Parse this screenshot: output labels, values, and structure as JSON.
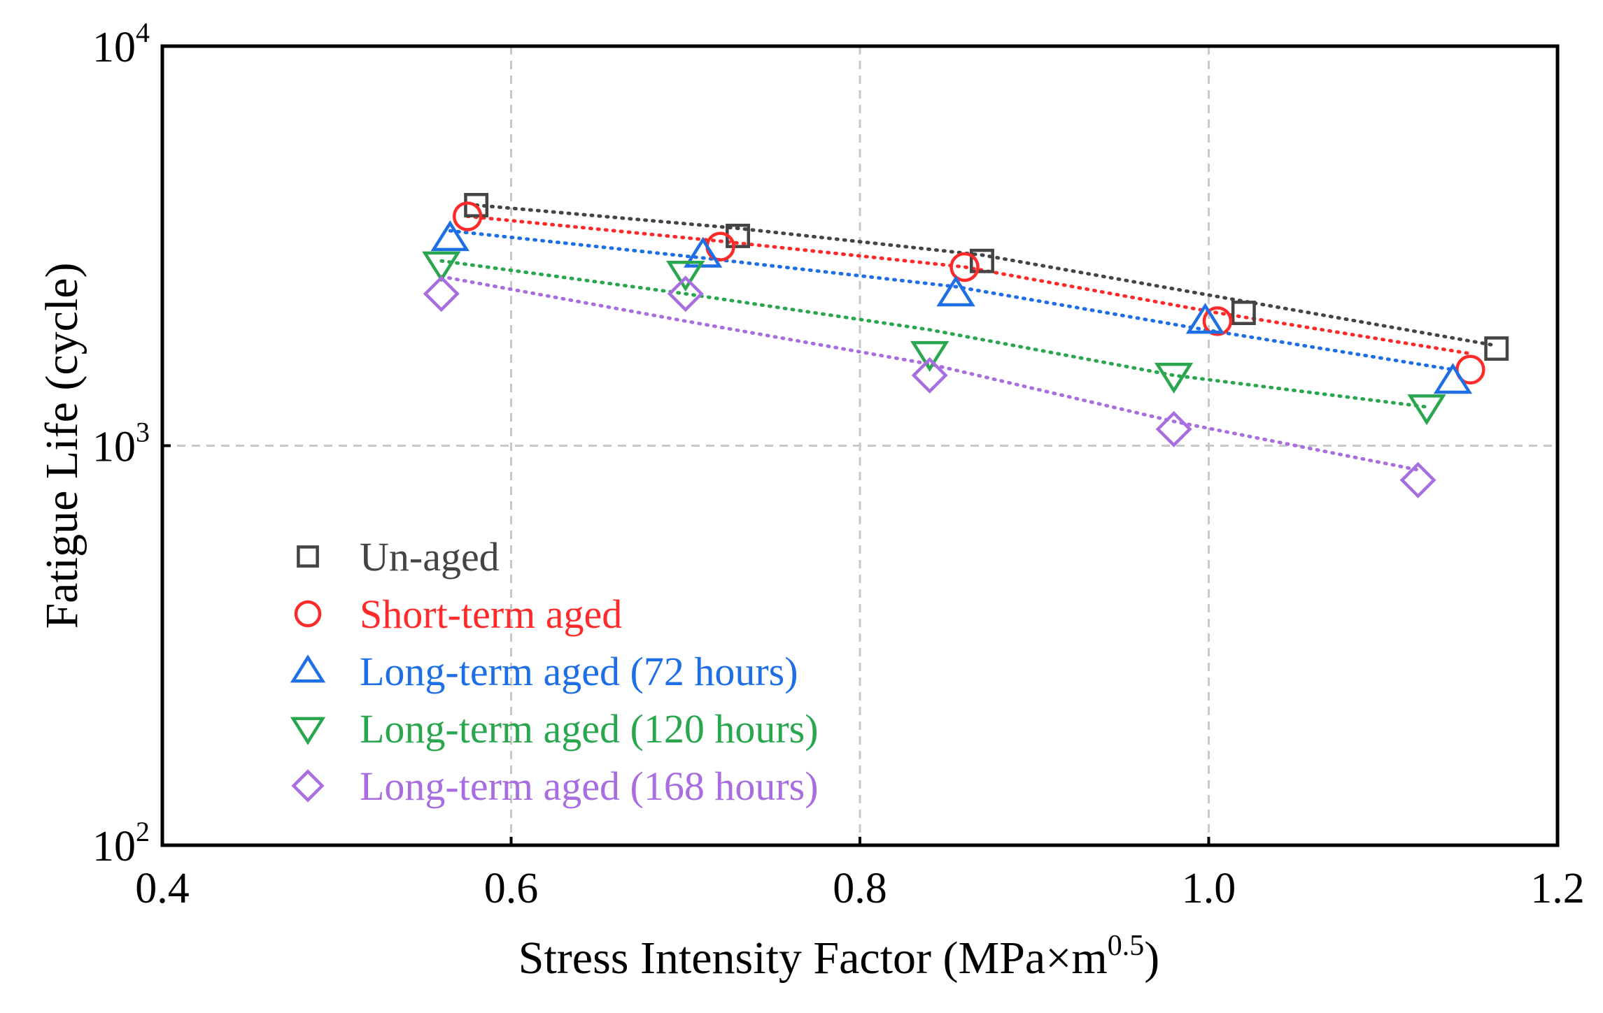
{
  "chart_data": {
    "type": "scatter",
    "title": "",
    "xlabel": "Stress Intensity Factor (MPa×m",
    "xlabel_sup": "0.5",
    "xlabel_end": ")",
    "ylabel": "Fatigue Life (cycle)",
    "xlim": [
      0.4,
      1.2
    ],
    "ylim": [
      100,
      10000
    ],
    "yscale": "log",
    "grid": true,
    "legend_position": "lower-left",
    "x_ticks": [
      {
        "value": 0.4,
        "label": "0.4"
      },
      {
        "value": 0.6,
        "label": "0.6"
      },
      {
        "value": 0.8,
        "label": "0.8"
      },
      {
        "value": 1.0,
        "label": "1.0"
      },
      {
        "value": 1.2,
        "label": "1.2"
      }
    ],
    "y_ticks": [
      {
        "value": 100,
        "base": "10",
        "exp": "2"
      },
      {
        "value": 1000,
        "base": "10",
        "exp": "3"
      },
      {
        "value": 10000,
        "base": "10",
        "exp": "4"
      }
    ],
    "series": [
      {
        "name": "Un-aged",
        "marker": "square",
        "color": "#444444",
        "x": [
          0.58,
          0.73,
          0.87,
          1.02,
          1.165
        ],
        "y": [
          4000,
          3350,
          2900,
          2150,
          1750
        ],
        "fit": [
          [
            0.58,
            4000
          ],
          [
            0.73,
            3500
          ],
          [
            0.87,
            3000
          ],
          [
            1.02,
            2300
          ],
          [
            1.165,
            1780
          ]
        ]
      },
      {
        "name": "Short-term aged",
        "marker": "circle",
        "color": "#ff2a2a",
        "x": [
          0.575,
          0.72,
          0.86,
          1.005,
          1.15
        ],
        "y": [
          3750,
          3150,
          2800,
          2050,
          1550
        ],
        "fit": [
          [
            0.575,
            3750
          ],
          [
            0.72,
            3250
          ],
          [
            0.86,
            2800
          ],
          [
            1.005,
            2150
          ],
          [
            1.15,
            1700
          ]
        ]
      },
      {
        "name": "Long-term aged (72 hours)",
        "marker": "triangle-up",
        "color": "#1e6fe6",
        "x": [
          0.565,
          0.71,
          0.855,
          0.998,
          1.14
        ],
        "y": [
          3300,
          3000,
          2400,
          2050,
          1450
        ],
        "fit": [
          [
            0.565,
            3450
          ],
          [
            0.71,
            2950
          ],
          [
            0.855,
            2500
          ],
          [
            0.998,
            1950
          ],
          [
            1.14,
            1550
          ]
        ]
      },
      {
        "name": "Long-term aged (120 hours)",
        "marker": "triangle-down",
        "color": "#2aa64f",
        "x": [
          0.56,
          0.7,
          0.84,
          0.98,
          1.125
        ],
        "y": [
          2850,
          2700,
          1700,
          1500,
          1250
        ],
        "fit": [
          [
            0.56,
            2900
          ],
          [
            0.7,
            2400
          ],
          [
            0.84,
            1950
          ],
          [
            0.98,
            1500
          ],
          [
            1.125,
            1250
          ]
        ]
      },
      {
        "name": "Long-term aged (168 hours)",
        "marker": "diamond",
        "color": "#a86ee0",
        "x": [
          0.56,
          0.7,
          0.84,
          0.98,
          1.12
        ],
        "y": [
          2400,
          2400,
          1500,
          1100,
          820
        ],
        "fit": [
          [
            0.56,
            2650
          ],
          [
            0.7,
            2050
          ],
          [
            0.84,
            1600
          ],
          [
            0.98,
            1150
          ],
          [
            1.12,
            870
          ]
        ]
      }
    ]
  }
}
